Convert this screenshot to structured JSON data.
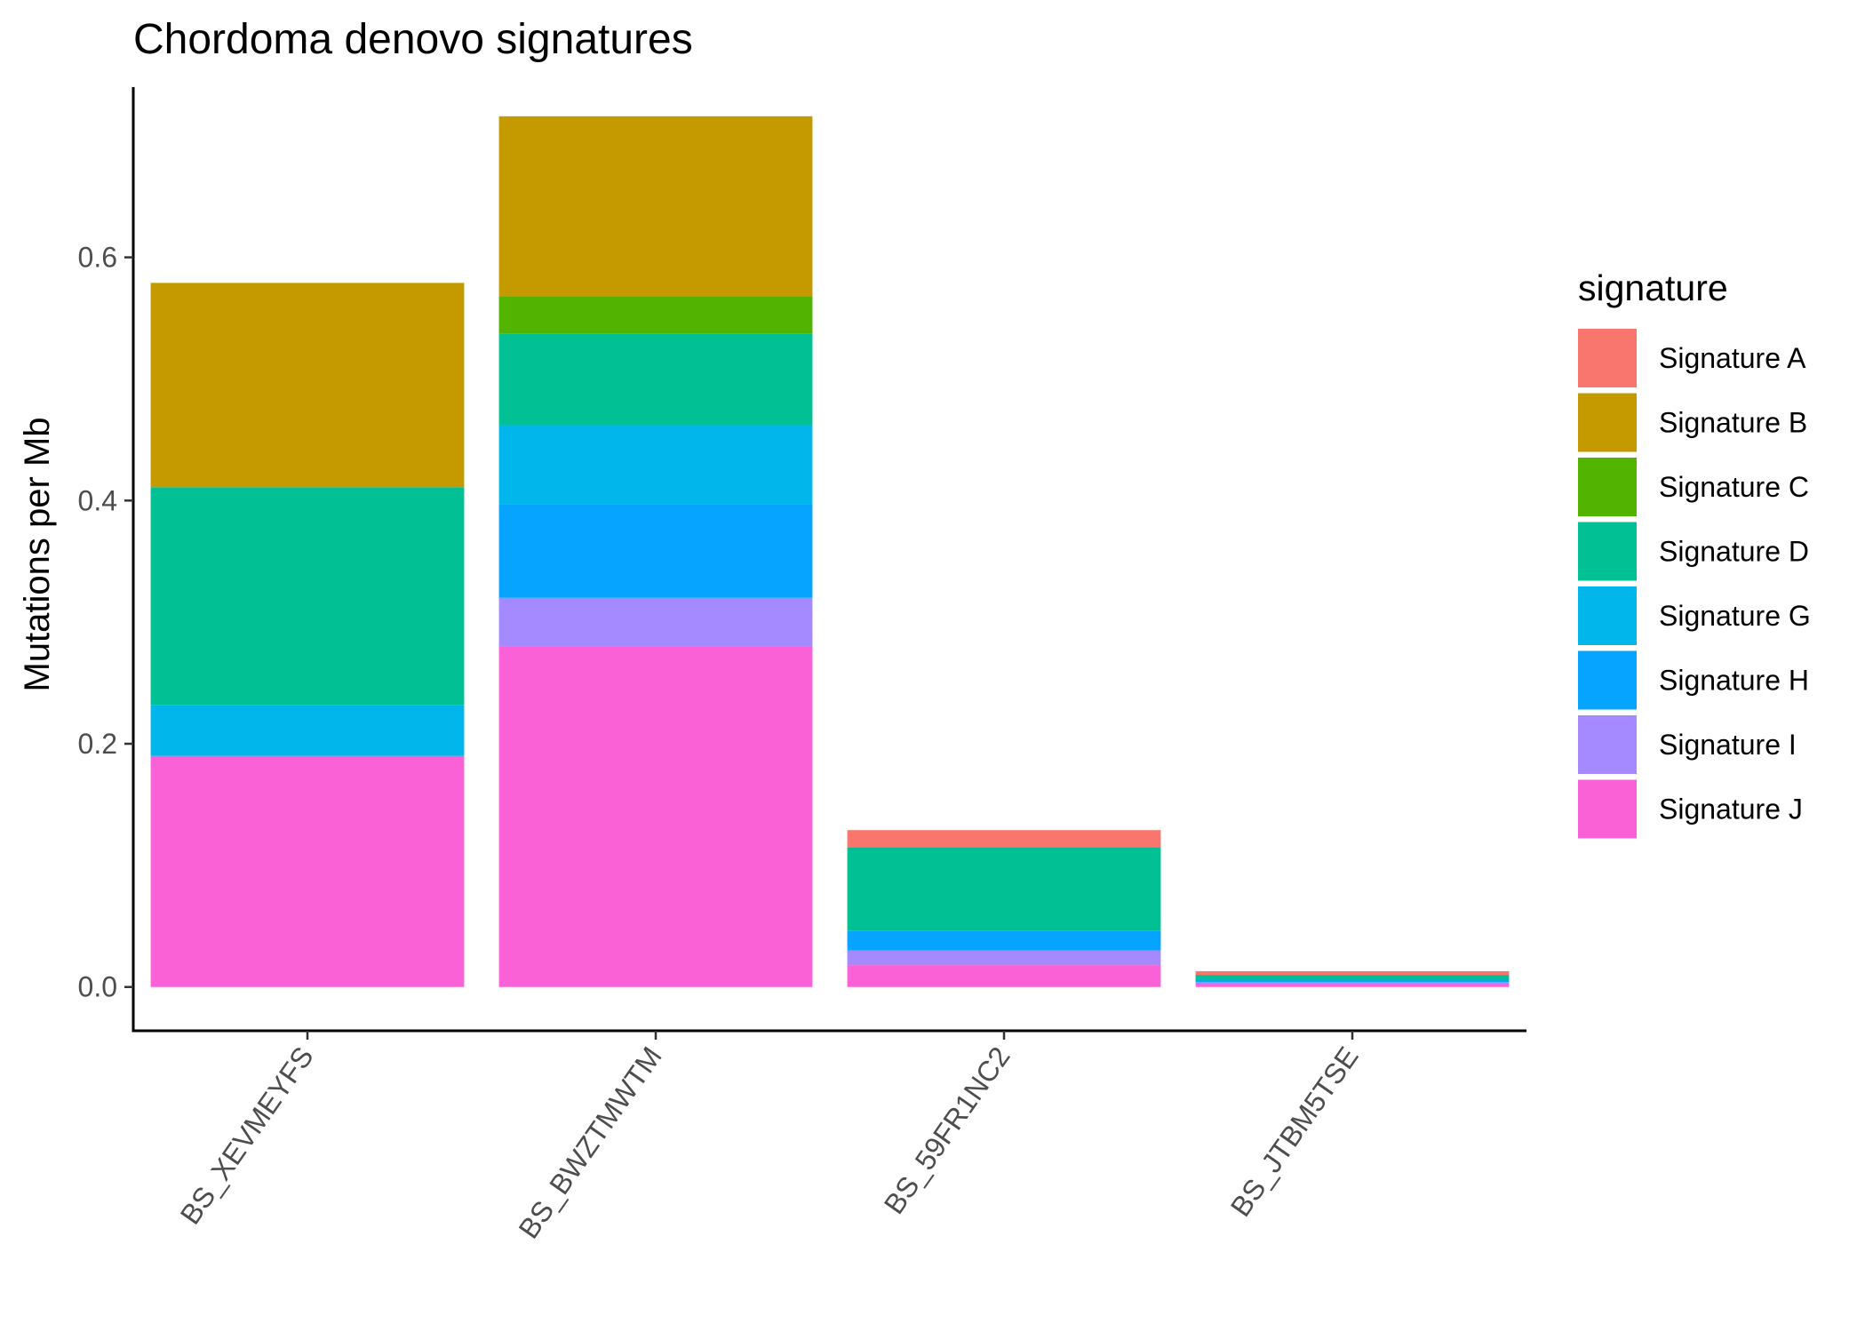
{
  "chart_data": {
    "type": "bar",
    "stacked": true,
    "title": "Chordoma denovo signatures",
    "xlabel": "",
    "ylabel": "Mutations per Mb",
    "ylim": [
      -0.036,
      0.74
    ],
    "yticks": [
      0.0,
      0.2,
      0.4,
      0.6
    ],
    "ytick_labels": [
      "0.0",
      "0.2",
      "0.4",
      "0.6"
    ],
    "categories": [
      "BS_XEVMEYFS",
      "BS_BWZTMWTM",
      "BS_59FR1NC2",
      "BS_JTBM5TSE"
    ],
    "legend": {
      "title": "signature",
      "position": "right"
    },
    "grid": false,
    "series": [
      {
        "name": "Signature A",
        "color": "#F8766D",
        "values": [
          0,
          0,
          0.014,
          0.003
        ]
      },
      {
        "name": "Signature B",
        "color": "#C49A00",
        "values": [
          0.168,
          0.148,
          0,
          0
        ]
      },
      {
        "name": "Signature C",
        "color": "#53B400",
        "values": [
          0,
          0.031,
          0,
          0
        ]
      },
      {
        "name": "Signature D",
        "color": "#00C094",
        "values": [
          0.179,
          0.075,
          0.069,
          0.004
        ]
      },
      {
        "name": "Signature G",
        "color": "#00B6EB",
        "values": [
          0.042,
          0.065,
          0,
          0
        ]
      },
      {
        "name": "Signature H",
        "color": "#06A4FF",
        "values": [
          0,
          0.077,
          0.016,
          0.002
        ]
      },
      {
        "name": "Signature I",
        "color": "#A58AFF",
        "values": [
          0,
          0.04,
          0.012,
          0.002
        ]
      },
      {
        "name": "Signature J",
        "color": "#FB61D7",
        "values": [
          0.19,
          0.28,
          0.018,
          0.002
        ]
      }
    ]
  }
}
